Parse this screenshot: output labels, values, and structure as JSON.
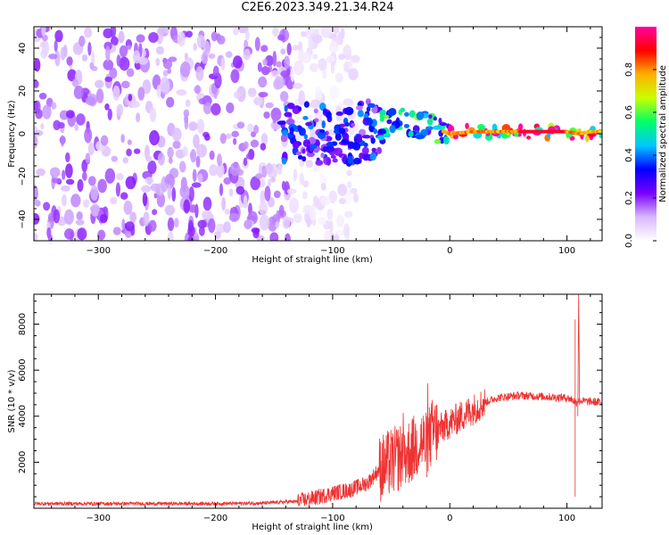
{
  "title": "C2E6.2023.349.21.34.R24",
  "chart_data": [
    {
      "type": "heatmap",
      "xlabel": "Height of straight line (km)",
      "ylabel": "Frequency (Hz)",
      "xlim": [
        -355,
        130
      ],
      "ylim": [
        -50,
        50
      ],
      "xticks": [
        -300,
        -200,
        -100,
        0,
        100
      ],
      "yticks": [
        -40,
        -20,
        0,
        20,
        40
      ],
      "colorbar": {
        "label": "Normalized spectral amplitude",
        "range": [
          0,
          1
        ],
        "ticks": [
          0.0,
          0.2,
          0.4,
          0.6,
          0.8
        ],
        "colors": [
          "#ffffff",
          "#d8b8ff",
          "#7a00ff",
          "#0000ff",
          "#00c8ff",
          "#00ff66",
          "#c8ff00",
          "#ffb000",
          "#ff0000",
          "#ff00a0"
        ]
      },
      "regions": [
        {
          "x": [
            -355,
            -135
          ],
          "freq_spread_hz": [
            -50,
            50
          ],
          "amplitude": 0.15
        },
        {
          "x": [
            -135,
            -80
          ],
          "freq_spread_hz": [
            -50,
            50
          ],
          "amplitude": 0.05
        },
        {
          "x": [
            -145,
            -60
          ],
          "freq_spread_hz": [
            -15,
            12
          ],
          "amplitude": 0.3
        },
        {
          "x": [
            -60,
            0
          ],
          "freq_spread_hz": [
            -6,
            8
          ],
          "amplitude": 0.45
        },
        {
          "x": [
            0,
            130
          ],
          "freq_spread_hz": [
            -3,
            3
          ],
          "amplitude": 0.85
        }
      ],
      "ridge": {
        "x": [
          -140,
          -120,
          -100,
          -80,
          -60,
          -40,
          -30,
          -20,
          -10,
          0,
          20,
          50,
          80,
          100,
          110,
          120,
          130
        ],
        "freq": [
          0,
          1,
          -2,
          0,
          3,
          5,
          6,
          3,
          2,
          0,
          1,
          1,
          1,
          1,
          0,
          1,
          1
        ]
      }
    },
    {
      "type": "line",
      "xlabel": "Height of straight line (km)",
      "ylabel": "SNR (10 * v/v)",
      "xlim": [
        -355,
        130
      ],
      "ylim": [
        0,
        9300
      ],
      "xticks": [
        -300,
        -200,
        -100,
        0,
        100
      ],
      "yticks": [
        2000,
        4000,
        6000,
        8000
      ],
      "series": [
        {
          "color": "#ee3333",
          "x": [
            -355,
            -300,
            -250,
            -200,
            -160,
            -130,
            -115,
            -100,
            -85,
            -70,
            -60,
            -50,
            -40,
            -30,
            -25,
            -20,
            -15,
            -10,
            0,
            10,
            20,
            30,
            40,
            60,
            80,
            100,
            105,
            108,
            110,
            115,
            130
          ],
          "values": [
            200,
            200,
            200,
            200,
            220,
            300,
            450,
            650,
            800,
            1100,
            1700,
            2000,
            2300,
            2600,
            3000,
            2700,
            3300,
            3400,
            3700,
            4000,
            4300,
            4600,
            4800,
            4900,
            4850,
            4800,
            4700,
            4600,
            4700,
            4650,
            4600
          ]
        }
      ],
      "annotations": [
        {
          "x": 107,
          "y_min": 500,
          "y_max": 8200
        },
        {
          "x": 110,
          "y_max": 9300
        }
      ]
    }
  ]
}
